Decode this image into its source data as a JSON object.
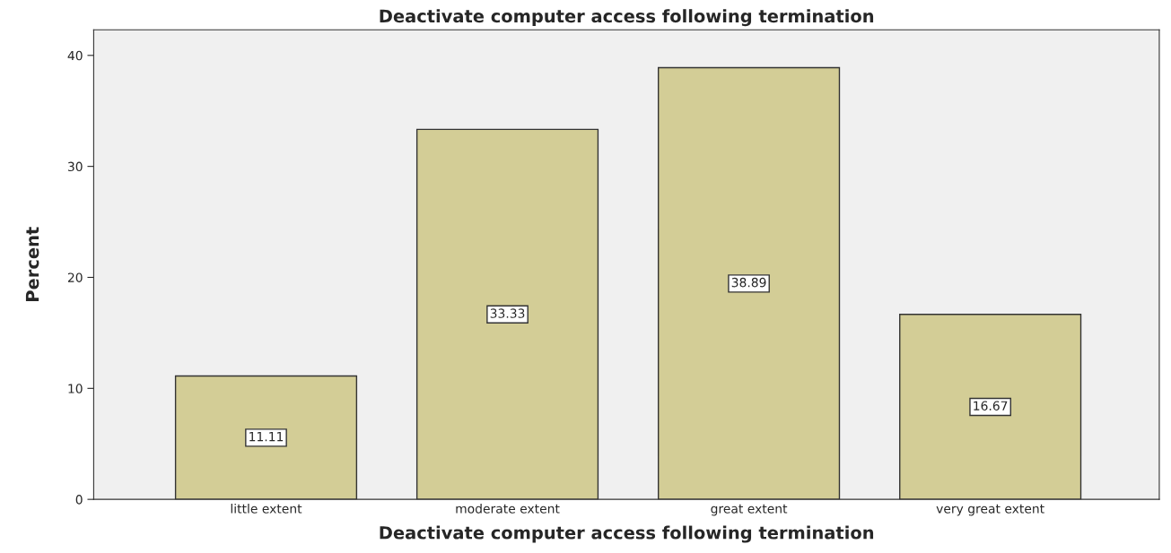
{
  "chart_data": {
    "type": "bar",
    "title": "Deactivate computer access following termination",
    "xlabel": "Deactivate computer access following termination",
    "ylabel": "Percent",
    "categories": [
      "little extent",
      "moderate extent",
      "great extent",
      "very great extent"
    ],
    "values": [
      11.11,
      33.33,
      38.89,
      16.67
    ],
    "color": "#d3cd96",
    "ylim": [
      0,
      42.3
    ],
    "yticks": [
      0,
      10,
      20,
      30,
      40
    ],
    "data_labels": true,
    "grid": false,
    "legend": false
  }
}
